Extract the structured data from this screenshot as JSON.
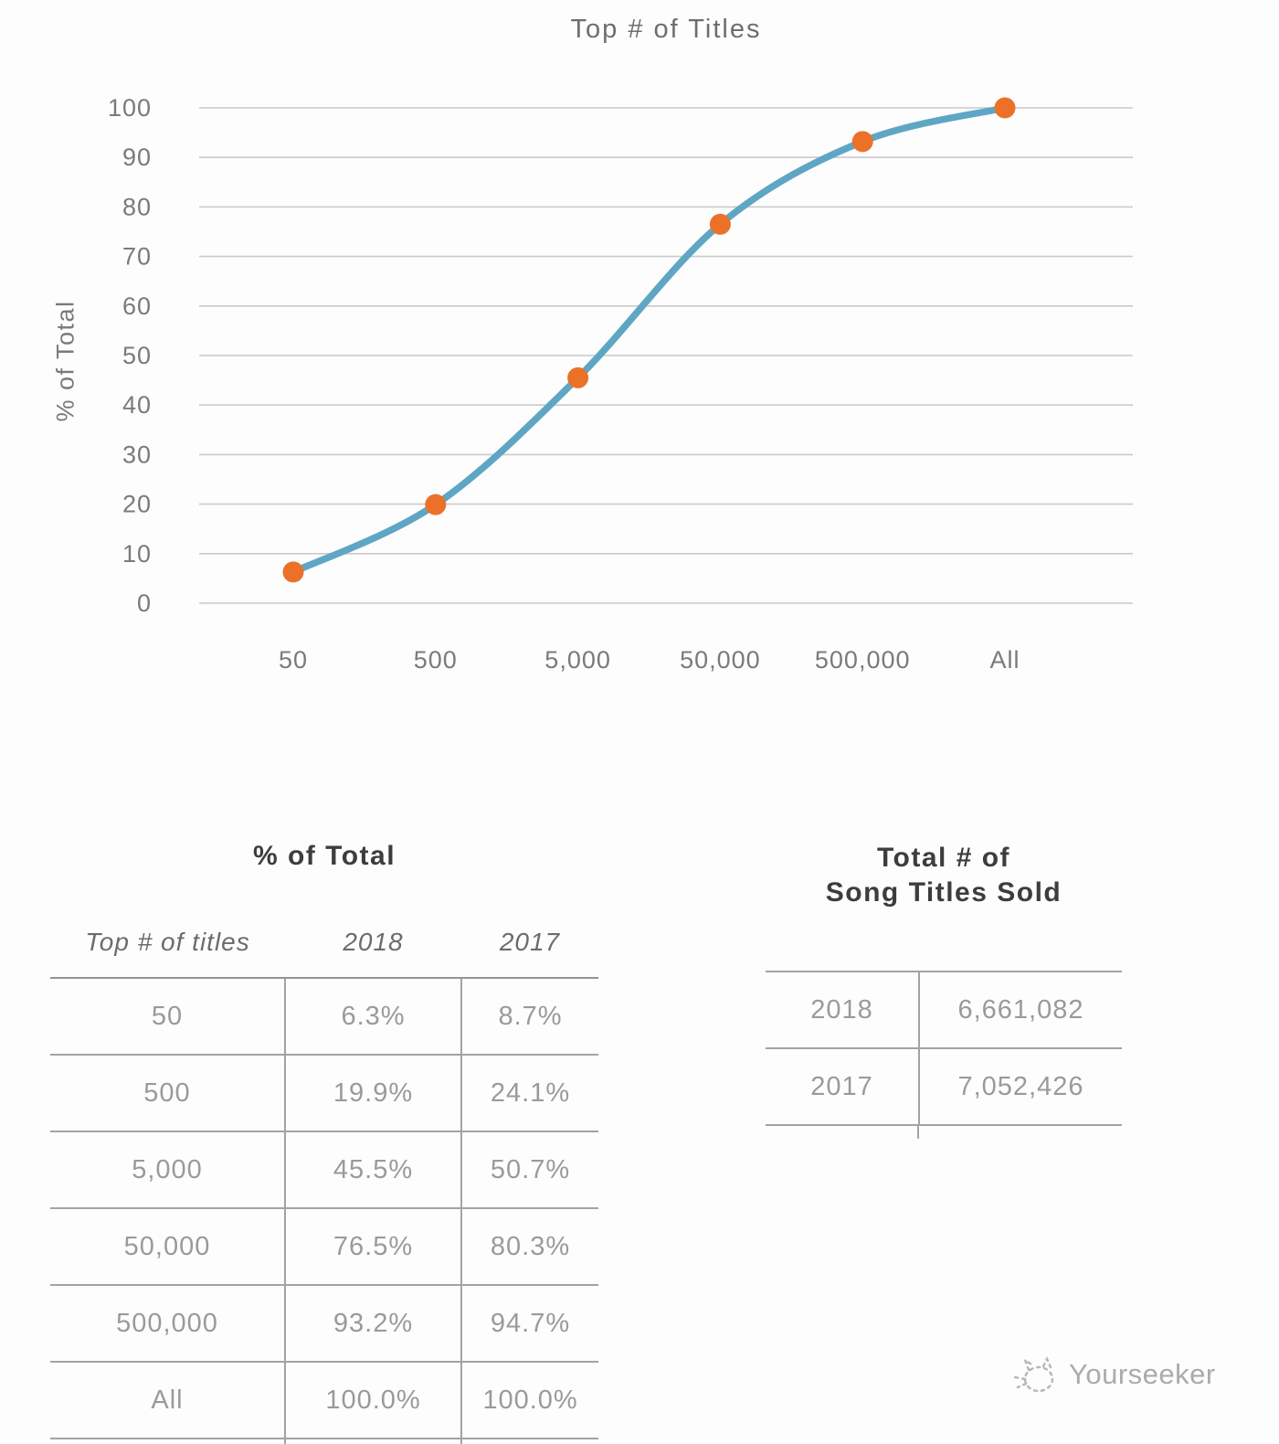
{
  "chart_data": {
    "type": "line",
    "title": "Top # of Titles",
    "xlabel": "",
    "ylabel": "% of Total",
    "categories": [
      "50",
      "500",
      "5,000",
      "50,000",
      "500,000",
      "All"
    ],
    "series": [
      {
        "name": "2018",
        "values": [
          6.3,
          19.9,
          45.5,
          76.5,
          93.2,
          100.0
        ]
      }
    ],
    "ylim": [
      0,
      100
    ],
    "ytick_step": 10,
    "grid": true,
    "legend": false,
    "line_color": "#5fa6c4",
    "marker_color": "#eb7128",
    "gridline_color": "#cacaca"
  },
  "left_table": {
    "title": "% of Total",
    "headers": [
      "Top # of titles",
      "2018",
      "2017"
    ],
    "rows": [
      [
        "50",
        "6.3%",
        "8.7%"
      ],
      [
        "500",
        "19.9%",
        "24.1%"
      ],
      [
        "5,000",
        "45.5%",
        "50.7%"
      ],
      [
        "50,000",
        "76.5%",
        "80.3%"
      ],
      [
        "500,000",
        "93.2%",
        "94.7%"
      ],
      [
        "All",
        "100.0%",
        "100.0%"
      ]
    ]
  },
  "right_table": {
    "title_line1": "Total # of",
    "title_line2": "Song Titles Sold",
    "rows": [
      [
        "2018",
        "6,661,082"
      ],
      [
        "2017",
        "7,052,426"
      ]
    ]
  },
  "watermark": {
    "label": "Yourseeker"
  }
}
